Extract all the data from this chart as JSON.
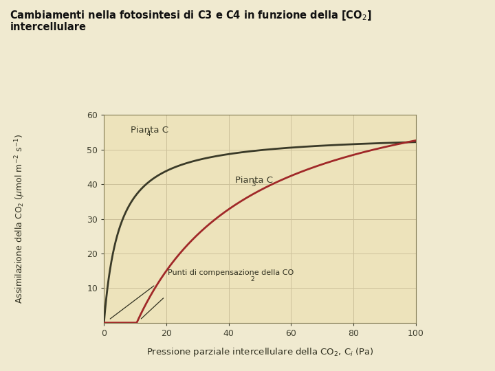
{
  "xlim": [
    0,
    100
  ],
  "ylim": [
    0,
    60
  ],
  "xticks": [
    0,
    20,
    40,
    60,
    80,
    100
  ],
  "yticks": [
    10,
    20,
    30,
    40,
    50,
    60
  ],
  "c4_color": "#3a3a28",
  "c3_color": "#a02828",
  "bg_color": "#f0ead0",
  "plot_bg": "#ede3bb",
  "grid_color": "#ccc09a",
  "c4_Vmax": 54.8,
  "c4_Km": 5.0,
  "c3_Vmax": 75.0,
  "c3_Km": 38.0,
  "c3_x0": 10.5,
  "figsize": [
    7.2,
    5.4
  ],
  "dpi": 100
}
